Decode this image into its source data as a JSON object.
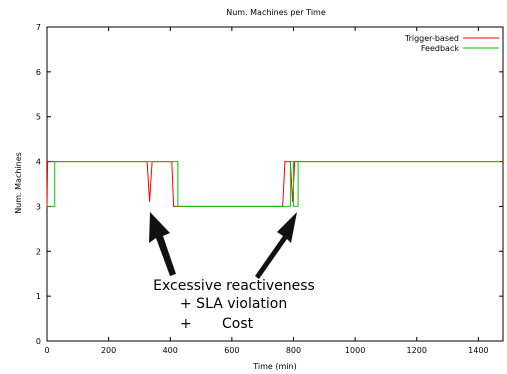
{
  "chart_data": {
    "type": "line",
    "title": "Num. Machines per Time",
    "xlabel": "Time (min)",
    "ylabel": "Num. Machines",
    "xlim": [
      0,
      1480
    ],
    "ylim": [
      0,
      7
    ],
    "x_ticks": [
      0,
      200,
      400,
      600,
      800,
      1000,
      1200,
      1400
    ],
    "y_ticks": [
      0,
      1,
      2,
      3,
      4,
      5,
      6,
      7
    ],
    "grid": false,
    "legend_position": "top-right",
    "series": [
      {
        "name": "Trigger-based",
        "color": "#ff0000",
        "points": [
          [
            0,
            3
          ],
          [
            2,
            4
          ],
          [
            325,
            4
          ],
          [
            333,
            3.1
          ],
          [
            341,
            4
          ],
          [
            405,
            4
          ],
          [
            411,
            3
          ],
          [
            765,
            3
          ],
          [
            772,
            4
          ],
          [
            790,
            4
          ],
          [
            797,
            3.1
          ],
          [
            804,
            4
          ],
          [
            1480,
            4
          ]
        ]
      },
      {
        "name": "Feedback",
        "color": "#00cc00",
        "points": [
          [
            0,
            3
          ],
          [
            25,
            3
          ],
          [
            25,
            4
          ],
          [
            425,
            4
          ],
          [
            425,
            3
          ],
          [
            790,
            3
          ],
          [
            790,
            4
          ],
          [
            800,
            4
          ],
          [
            800,
            3
          ],
          [
            815,
            3
          ],
          [
            815,
            4
          ],
          [
            1470,
            4
          ]
        ]
      }
    ]
  },
  "annotation": {
    "line1": "Excessive reactiveness",
    "line2": "+ SLA violation",
    "line3": "+",
    "line3b": "Cost"
  },
  "colors": {
    "arrow": "#111111",
    "axis": "#000000"
  }
}
